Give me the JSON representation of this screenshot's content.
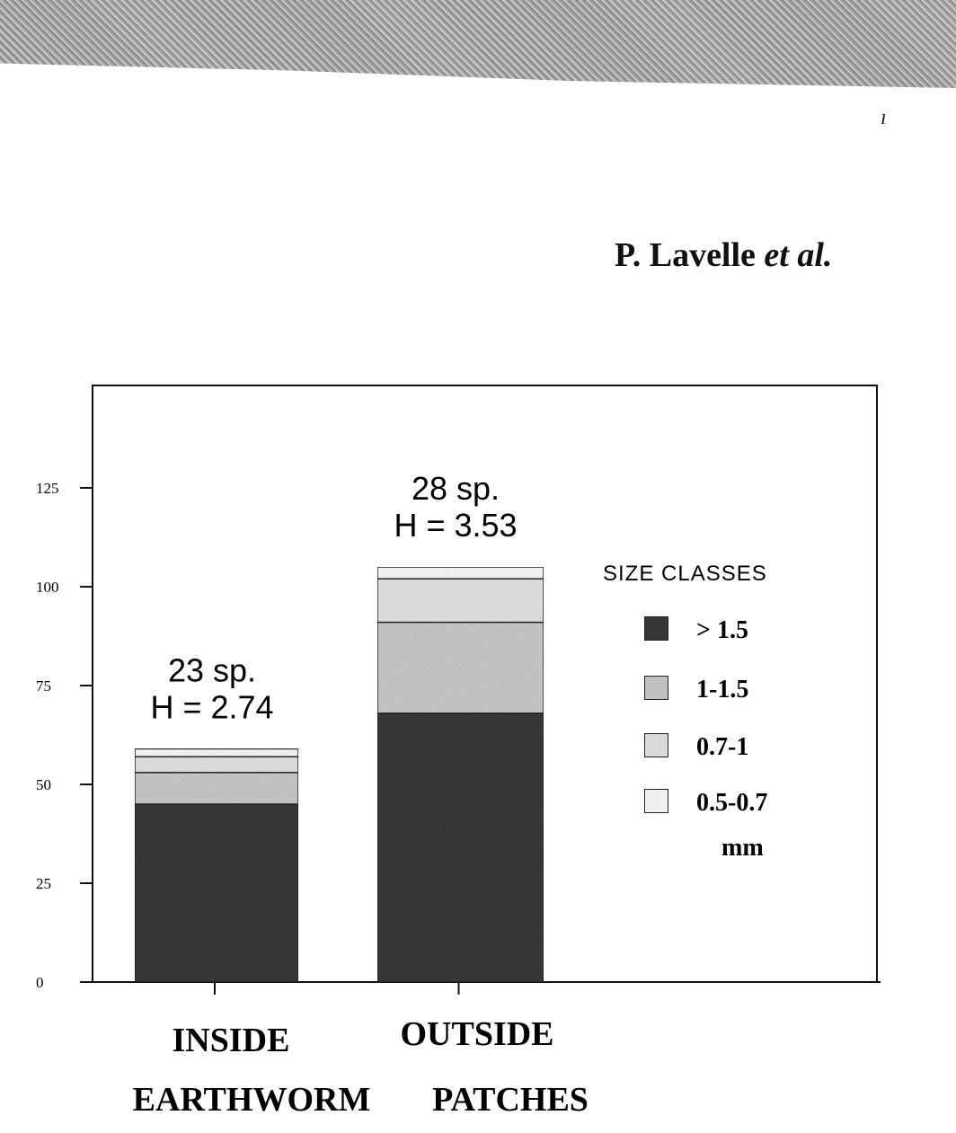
{
  "header": {
    "author_main": "P. Lavelle",
    "author_italic": "et al."
  },
  "chart_data": {
    "type": "bar",
    "stacked": true,
    "categories": [
      "INSIDE",
      "OUTSIDE"
    ],
    "category_labels": [
      "INSIDE",
      "OUTSIDE"
    ],
    "bottom_caption": [
      "EARTHWORM",
      "PATCHES"
    ],
    "ylim": [
      0,
      150
    ],
    "yticks": [
      0,
      25,
      50,
      75,
      100,
      125
    ],
    "ytick_labels": [
      "0",
      "25",
      "50",
      "75",
      "100",
      "125"
    ],
    "series": [
      {
        "name": "> 1.5",
        "values": [
          45,
          68
        ],
        "color": "#3a3a3a"
      },
      {
        "name": "1-1.5",
        "values": [
          8,
          23
        ],
        "color": "#c9c9c9"
      },
      {
        "name": "0.7-1",
        "values": [
          4,
          11
        ],
        "color": "#e3e3e3"
      },
      {
        "name": "0.5-0.7",
        "values": [
          2,
          3
        ],
        "color": "#fafafa"
      }
    ],
    "bar_annotations": [
      {
        "species": "23 sp.",
        "diversity": "H = 2.74"
      },
      {
        "species": "28 sp.",
        "diversity": "H = 3.53"
      }
    ],
    "legend": {
      "title": "SIZE CLASSES",
      "unit": "mm",
      "placement": "right"
    },
    "grid": false
  }
}
